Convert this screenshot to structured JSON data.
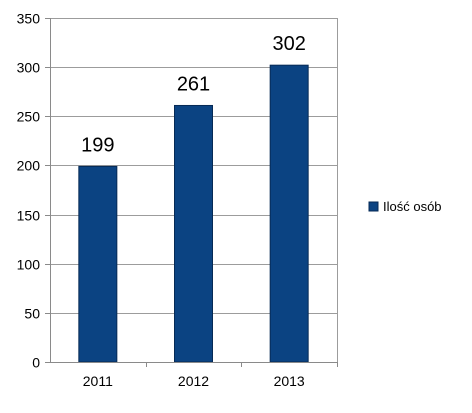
{
  "chart_data": {
    "type": "bar",
    "categories": [
      "2011",
      "2012",
      "2013"
    ],
    "series": [
      {
        "name": "Ilość osób",
        "values": [
          199,
          261,
          302
        ]
      }
    ],
    "data_labels": [
      "199",
      "261",
      "302"
    ],
    "y_ticks": [
      "0",
      "50",
      "100",
      "150",
      "200",
      "250",
      "300",
      "350"
    ],
    "ylim": [
      0,
      350
    ],
    "grid": true,
    "legend_position": "right",
    "colors": {
      "bar": "#0b4382",
      "bar_edge": "#062a55",
      "grid": "#9c9c9c",
      "axis": "#8a8a8a"
    }
  }
}
